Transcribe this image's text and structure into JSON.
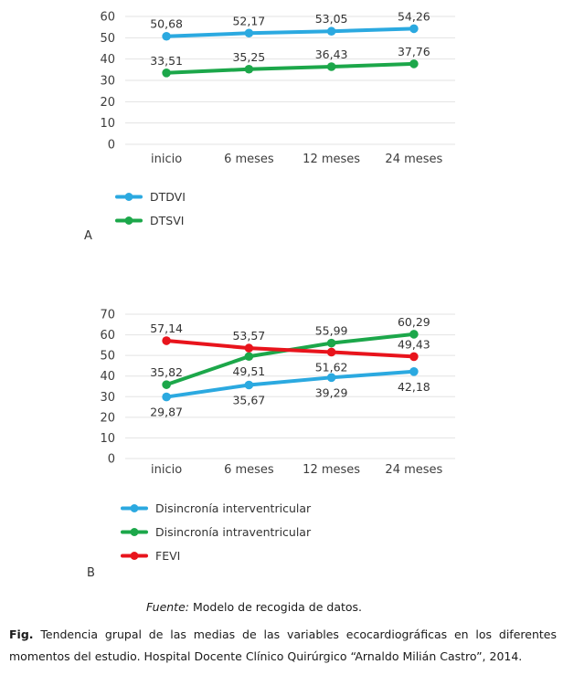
{
  "chart_data": [
    {
      "id": "A",
      "type": "line",
      "panel_label": "A",
      "categories": [
        "inicio",
        "6 meses",
        "12 meses",
        "24 meses"
      ],
      "ylim": [
        0,
        60
      ],
      "ytick_step": 10,
      "grid": "horizontal",
      "legend_position": "bottom-left",
      "series": [
        {
          "name": "DTDVI",
          "color": "#2BA9E0",
          "values": [
            50.68,
            52.17,
            53.05,
            54.26
          ],
          "point_labels": [
            "50,68",
            "52,17",
            "53,05",
            "54,26"
          ],
          "label_positions": [
            "above",
            "above",
            "above",
            "above"
          ]
        },
        {
          "name": "DTSVI",
          "color": "#1CA74A",
          "values": [
            33.51,
            35.25,
            36.43,
            37.76
          ],
          "point_labels": [
            "33,51",
            "35,25",
            "36,43",
            "37,76"
          ],
          "label_positions": [
            "above",
            "above",
            "above",
            "above"
          ]
        }
      ]
    },
    {
      "id": "B",
      "type": "line",
      "panel_label": "B",
      "categories": [
        "inicio",
        "6 meses",
        "12 meses",
        "24 meses"
      ],
      "ylim": [
        0,
        70
      ],
      "ytick_step": 10,
      "grid": "horizontal",
      "legend_position": "bottom-left",
      "series": [
        {
          "name": "Disincronía interventricular",
          "color": "#2BA9E0",
          "values": [
            29.87,
            35.67,
            39.29,
            42.18
          ],
          "point_labels": [
            "29,87",
            "35,67",
            "39,29",
            "42,18"
          ],
          "label_positions": [
            "below",
            "below",
            "below",
            "below"
          ]
        },
        {
          "name": "Disincronía intraventricular",
          "color": "#1CA74A",
          "values": [
            35.82,
            49.51,
            55.99,
            60.29
          ],
          "point_labels": [
            "35,82",
            "49,51",
            "55,99",
            "60,29"
          ],
          "label_positions": [
            "above",
            "below",
            "above",
            "above"
          ]
        },
        {
          "name": "FEVI",
          "color": "#E8141C",
          "values": [
            57.14,
            53.57,
            51.62,
            49.43
          ],
          "point_labels": [
            "57,14",
            "53,57",
            "51,62",
            "49,43"
          ],
          "label_positions": [
            "above",
            "above",
            "below",
            "above"
          ]
        }
      ]
    }
  ],
  "caption": {
    "fuente_label": "Fuente:",
    "fuente_text": "Modelo de recogida de datos.",
    "fig_label": "Fig.",
    "fig_text": "Tendencia grupal de las medias de las variables ecocardiográficas en los diferentes momentos del estudio. Hospital Docente Clínico Quirúrgico “Arnaldo Milián Castro”, 2014."
  }
}
